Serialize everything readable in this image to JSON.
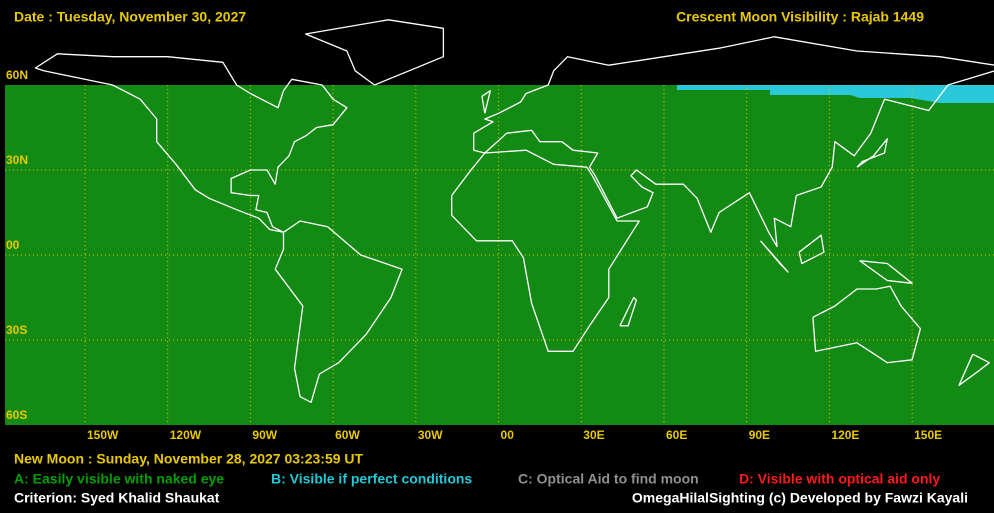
{
  "header": {
    "date": "Date : Tuesday, November 30, 2027",
    "title": "Crescent Moon Visibility : Rajab  1449"
  },
  "lat_labels": [
    "60N",
    "30N",
    "00",
    "30S",
    "60S"
  ],
  "lon_labels": [
    "150W",
    "120W",
    "90W",
    "60W",
    "30W",
    "00",
    "30E",
    "60E",
    "90E",
    "120E",
    "150E"
  ],
  "footer": {
    "new_moon": "New Moon : Sunday, November 28, 2027  03:23:59  UT",
    "legend": [
      "A: Easily visible with naked eye",
      "B: Visible if perfect conditions",
      "C: Optical Aid to find moon",
      "D: Visible with optical aid only"
    ],
    "criterion": "Criterion: Syed Khalid Shaukat",
    "credit": "OmegaHilalSighting  (c)  Developed by Fawzi Kayali"
  }
}
